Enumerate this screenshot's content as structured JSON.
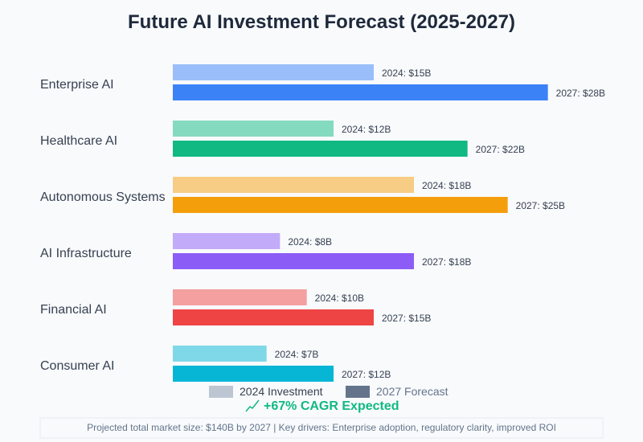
{
  "chart_data": {
    "type": "bar",
    "orientation": "horizontal",
    "title": "Future AI Investment Forecast (2025-2027)",
    "categories": [
      "Enterprise AI",
      "Healthcare AI",
      "Autonomous Systems",
      "AI Infrastructure",
      "Financial AI",
      "Consumer AI"
    ],
    "series": [
      {
        "name": "2024 Investment",
        "values": [
          15,
          12,
          18,
          8,
          10,
          7
        ],
        "labels": [
          "2024: $15B",
          "2024: $12B",
          "2024: $18B",
          "2024: $8B",
          "2024: $10B",
          "2024: $7B"
        ]
      },
      {
        "name": "2027 Forecast",
        "values": [
          28,
          22,
          25,
          18,
          15,
          12
        ],
        "labels": [
          "2027: $28B",
          "2027: $22B",
          "2027: $25B",
          "2027: $18B",
          "2027: $15B",
          "2027: $12B"
        ]
      }
    ],
    "unit": "$B",
    "colors": [
      "#3b82f6",
      "#10b981",
      "#f59e0b",
      "#8b5cf6",
      "#ef4444",
      "#06b6d4"
    ],
    "legend_colors": [
      "#94a3b8",
      "#64748b"
    ],
    "legend_placement": "bottom",
    "grid": false,
    "annotation": "+67% CAGR Expected",
    "annotation_icon": "trending-up-icon",
    "annotation_color": "#10b981",
    "footer": "Projected total market size: $140B by 2027 | Key drivers: Enterprise adoption, regulatory clarity, improved ROI"
  }
}
